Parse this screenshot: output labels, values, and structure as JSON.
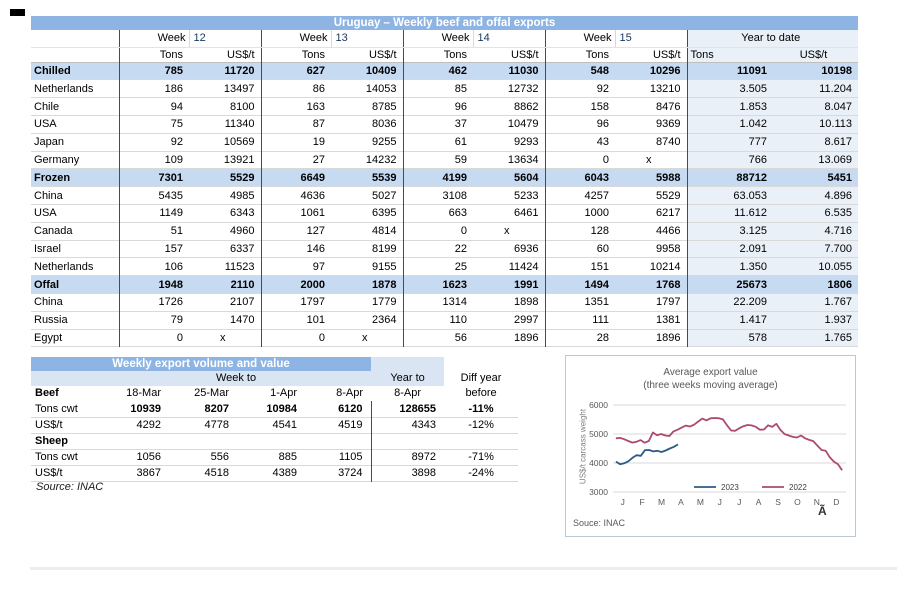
{
  "main_table": {
    "title": "Uruguay – Weekly beef and offal exports",
    "weeks": [
      {
        "label": "Week",
        "num": "12"
      },
      {
        "label": "Week",
        "num": "13"
      },
      {
        "label": "Week",
        "num": "14"
      },
      {
        "label": "Week",
        "num": "15"
      }
    ],
    "ytd_header": "Year to date",
    "sub_tons": "Tons",
    "sub_usd": "US$/t",
    "ytd_sub_tons": "Tons",
    "ytd_sub_usd": "US$/t",
    "rows": [
      {
        "label": "Chilled",
        "type": "section",
        "values": [
          "785",
          "11720",
          "627",
          "10409",
          "462",
          "11030",
          "548",
          "10296",
          "11091",
          "10198"
        ]
      },
      {
        "label": "Netherlands",
        "type": "data",
        "values": [
          "186",
          "13497",
          "86",
          "14053",
          "85",
          "12732",
          "92",
          "13210",
          "3.505",
          "11.204"
        ]
      },
      {
        "label": "Chile",
        "type": "data",
        "values": [
          "94",
          "8100",
          "163",
          "8785",
          "96",
          "8862",
          "158",
          "8476",
          "1.853",
          "8.047"
        ]
      },
      {
        "label": "USA",
        "type": "data",
        "values": [
          "75",
          "11340",
          "87",
          "8036",
          "37",
          "10479",
          "96",
          "9369",
          "1.042",
          "10.113"
        ]
      },
      {
        "label": "Japan",
        "type": "data",
        "values": [
          "92",
          "10569",
          "19",
          "9255",
          "61",
          "9293",
          "43",
          "8740",
          "777",
          "8.617"
        ]
      },
      {
        "label": "Germany",
        "type": "data",
        "values": [
          "109",
          "13921",
          "27",
          "14232",
          "59",
          "13634",
          "0",
          "x",
          "766",
          "13.069"
        ]
      },
      {
        "label": "Frozen",
        "type": "section",
        "values": [
          "7301",
          "5529",
          "6649",
          "5539",
          "4199",
          "5604",
          "6043",
          "5988",
          "88712",
          "5451"
        ]
      },
      {
        "label": "China",
        "type": "data",
        "values": [
          "5435",
          "4985",
          "4636",
          "5027",
          "3108",
          "5233",
          "4257",
          "5529",
          "63.053",
          "4.896"
        ]
      },
      {
        "label": "USA",
        "type": "data",
        "values": [
          "1149",
          "6343",
          "1061",
          "6395",
          "663",
          "6461",
          "1000",
          "6217",
          "11.612",
          "6.535"
        ]
      },
      {
        "label": "Canada",
        "type": "data",
        "values": [
          "51",
          "4960",
          "127",
          "4814",
          "0",
          "x",
          "128",
          "4466",
          "3.125",
          "4.716"
        ]
      },
      {
        "label": "Israel",
        "type": "data",
        "values": [
          "157",
          "6337",
          "146",
          "8199",
          "22",
          "6936",
          "60",
          "9958",
          "2.091",
          "7.700"
        ]
      },
      {
        "label": "Netherlands",
        "type": "data",
        "values": [
          "106",
          "11523",
          "97",
          "9155",
          "25",
          "11424",
          "151",
          "10214",
          "1.350",
          "10.055"
        ]
      },
      {
        "label": "Offal",
        "type": "section",
        "values": [
          "1948",
          "2110",
          "2000",
          "1878",
          "1623",
          "1991",
          "1494",
          "1768",
          "25673",
          "1806"
        ]
      },
      {
        "label": "China",
        "type": "data",
        "values": [
          "1726",
          "2107",
          "1797",
          "1779",
          "1314",
          "1898",
          "1351",
          "1797",
          "22.209",
          "1.767"
        ]
      },
      {
        "label": "Russia",
        "type": "data",
        "values": [
          "79",
          "1470",
          "101",
          "2364",
          "110",
          "2997",
          "111",
          "1381",
          "1.417",
          "1.937"
        ]
      },
      {
        "label": "Egypt",
        "type": "data",
        "values": [
          "0",
          "x",
          "0",
          "x",
          "56",
          "1896",
          "28",
          "1896",
          "578",
          "1.765"
        ]
      }
    ]
  },
  "weekly_table": {
    "title": "Weekly export volume and value",
    "week_to": "Week to",
    "year_to": "Year to",
    "diff_year": "Diff year",
    "header_row": {
      "label": "Beef",
      "cols": [
        "18-Mar",
        "25-Mar",
        "1-Apr",
        "8-Apr",
        "8-Apr",
        "before"
      ]
    },
    "rows": [
      {
        "label": "Tons cwt",
        "bold_values": true,
        "values": [
          "10939",
          "8207",
          "10984",
          "6120",
          "128655",
          "-11%"
        ]
      },
      {
        "label": "US$/t",
        "bold_values": false,
        "values": [
          "4292",
          "4778",
          "4541",
          "4519",
          "4343",
          "-12%"
        ]
      },
      {
        "label": "Sheep",
        "section": true,
        "values": [
          "",
          "",
          "",
          "",
          "",
          ""
        ]
      },
      {
        "label": "Tons cwt",
        "bold_values": false,
        "values": [
          "1056",
          "556",
          "885",
          "1105",
          "8972",
          "-71%"
        ]
      },
      {
        "label": "US$/t",
        "bold_values": false,
        "values": [
          "3867",
          "4518",
          "4389",
          "3724",
          "3898",
          "-24%"
        ]
      }
    ],
    "source": "Source: INAC"
  },
  "chart_data": {
    "type": "line",
    "title": "Average export  value",
    "subtitle": "(three weeks moving average)",
    "ylabel": "US$/t carcass weight",
    "ylim": [
      3000,
      6000
    ],
    "yticks": [
      3000,
      4000,
      5000,
      6000
    ],
    "x_categories": [
      "J",
      "F",
      "M",
      "A",
      "M",
      "J",
      "J",
      "A",
      "S",
      "O",
      "N",
      "D"
    ],
    "grid": true,
    "legend_position": "bottom-inside",
    "series": [
      {
        "name": "2023",
        "color": "#2E5B84",
        "month_span": [
          0.15,
          3.35
        ],
        "values": [
          4050,
          3960,
          3990,
          4060,
          4180,
          4270,
          4250,
          4440,
          4450,
          4400,
          4420,
          4380,
          4430,
          4500,
          4560,
          4640
        ]
      },
      {
        "name": "2022",
        "color": "#AC4A72",
        "month_span": [
          0.15,
          11.8
        ],
        "values": [
          4850,
          4865,
          4820,
          4760,
          4705,
          4730,
          4790,
          4700,
          4760,
          5050,
          4960,
          5000,
          4950,
          4930,
          5090,
          5150,
          5220,
          5290,
          5260,
          5320,
          5430,
          5530,
          5470,
          5540,
          5550,
          5545,
          5510,
          5300,
          5120,
          5110,
          5200,
          5270,
          5310,
          5295,
          5250,
          5150,
          5155,
          5300,
          5245,
          5350,
          5140,
          5000,
          4950,
          4900,
          4880,
          4950,
          4850,
          4795,
          4755,
          4600,
          4450,
          4420,
          4195,
          4050,
          3960,
          3750
        ]
      }
    ],
    "source_note": "Souce: INAC",
    "corner_glyph": "Ã"
  }
}
